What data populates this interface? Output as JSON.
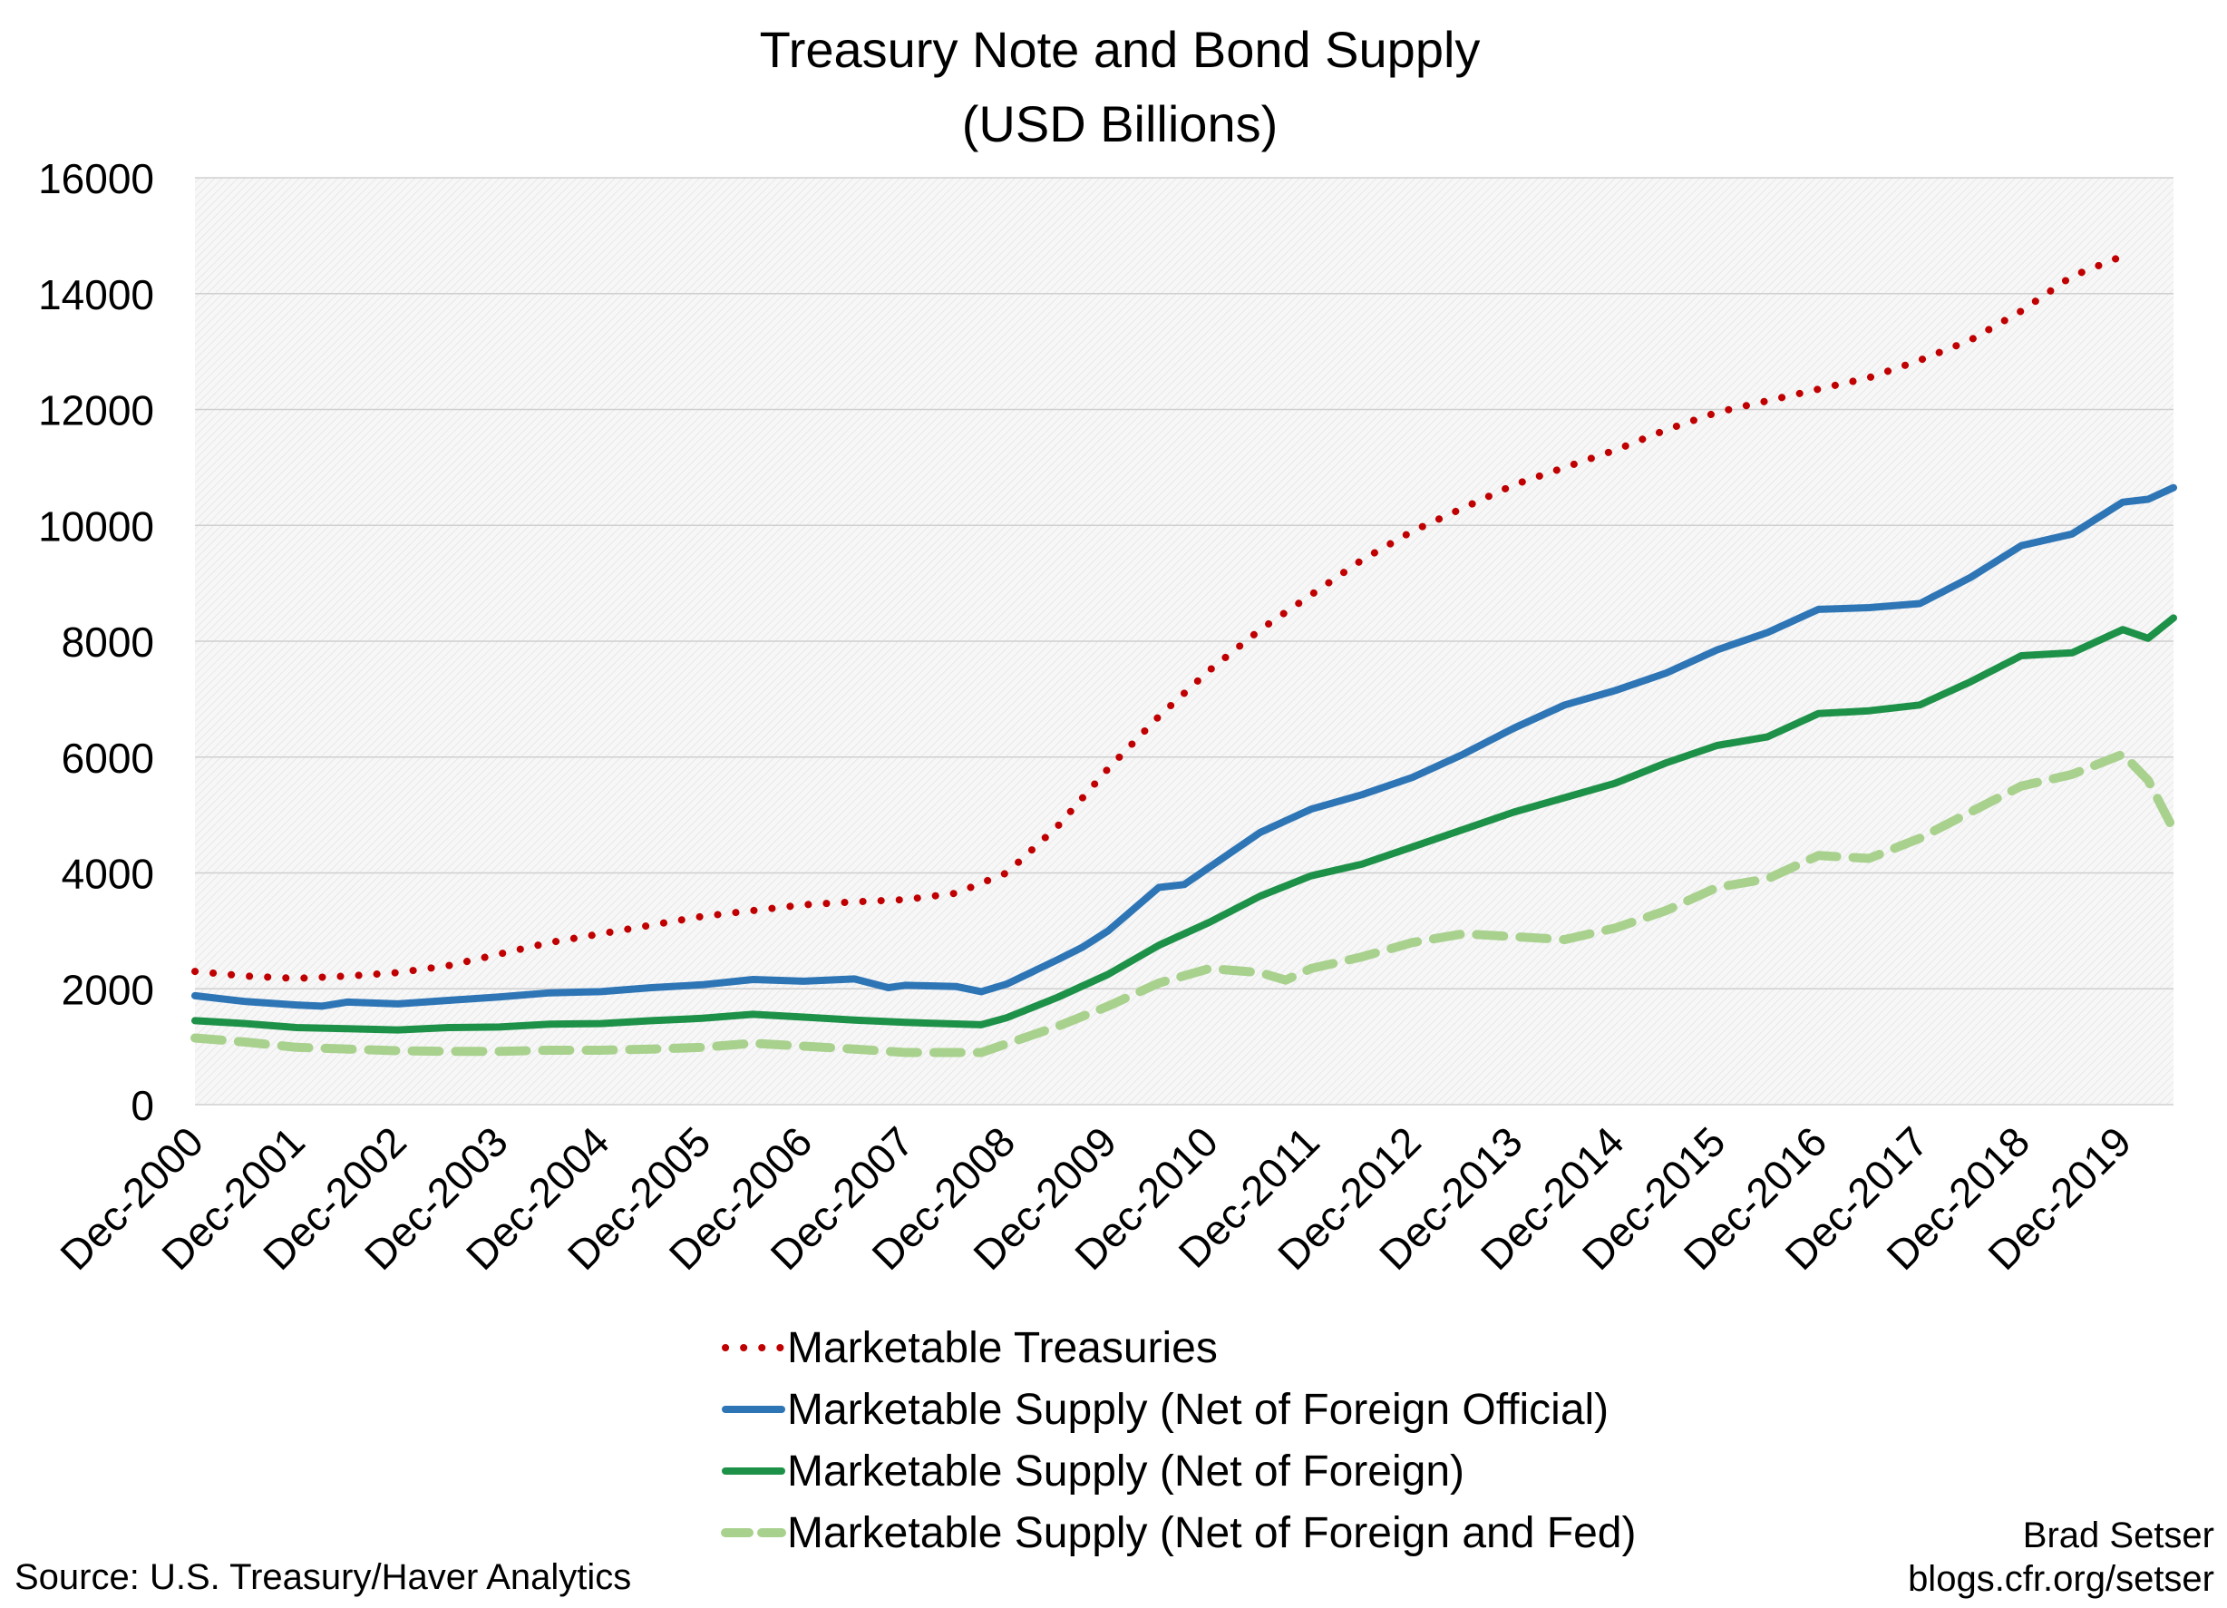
{
  "chart_data": {
    "type": "line",
    "title": "Treasury Note and Bond Supply",
    "subtitle": "(USD Billions)",
    "ylim": [
      0,
      16000
    ],
    "y_ticks": [
      0,
      2000,
      4000,
      6000,
      8000,
      10000,
      12000,
      14000,
      16000
    ],
    "x_ticks": [
      "Dec-2000",
      "Dec-2001",
      "Dec-2002",
      "Dec-2003",
      "Dec-2004",
      "Dec-2005",
      "Dec-2006",
      "Dec-2007",
      "Dec-2008",
      "Dec-2009",
      "Dec-2010",
      "Dec-2011",
      "Dec-2012",
      "Dec-2013",
      "Dec-2014",
      "Dec-2015",
      "Dec-2016",
      "Dec-2017",
      "Dec-2018",
      "Dec-2019"
    ],
    "xlim": [
      "Dec-2000",
      "Jun-2020"
    ],
    "grid": "horizontal",
    "legend_position": "bottom",
    "series": [
      {
        "name": "Marketable Treasuries",
        "color": "#c00000",
        "style": "dotted",
        "points": [
          [
            "Dec-2000",
            2300
          ],
          [
            "Jun-2001",
            2220
          ],
          [
            "Dec-2001",
            2180
          ],
          [
            "Jun-2002",
            2220
          ],
          [
            "Dec-2002",
            2280
          ],
          [
            "Jun-2003",
            2400
          ],
          [
            "Dec-2003",
            2600
          ],
          [
            "Jun-2004",
            2800
          ],
          [
            "Dec-2004",
            2950
          ],
          [
            "Jun-2005",
            3100
          ],
          [
            "Dec-2005",
            3250
          ],
          [
            "Jun-2006",
            3350
          ],
          [
            "Dec-2006",
            3450
          ],
          [
            "Jun-2007",
            3500
          ],
          [
            "Dec-2007",
            3540
          ],
          [
            "Jun-2008",
            3650
          ],
          [
            "Dec-2008",
            4000
          ],
          [
            "Jun-2009",
            4800
          ],
          [
            "Dec-2009",
            5800
          ],
          [
            "Jun-2010",
            6700
          ],
          [
            "Dec-2010",
            7500
          ],
          [
            "Jun-2011",
            8200
          ],
          [
            "Dec-2011",
            8800
          ],
          [
            "Jun-2012",
            9400
          ],
          [
            "Dec-2012",
            9900
          ],
          [
            "Jun-2013",
            10300
          ],
          [
            "Dec-2013",
            10700
          ],
          [
            "Jun-2014",
            11000
          ],
          [
            "Dec-2014",
            11300
          ],
          [
            "Jun-2015",
            11650
          ],
          [
            "Dec-2015",
            11950
          ],
          [
            "Jun-2016",
            12150
          ],
          [
            "Dec-2016",
            12350
          ],
          [
            "Jun-2017",
            12550
          ],
          [
            "Dec-2017",
            12850
          ],
          [
            "Jun-2018",
            13200
          ],
          [
            "Dec-2018",
            13700
          ],
          [
            "Jun-2019",
            14300
          ],
          [
            "Dec-2019",
            14650
          ]
        ]
      },
      {
        "name": "Marketable Supply (Net of Foreign Official)",
        "color": "#2e75b6",
        "style": "solid",
        "points": [
          [
            "Dec-2000",
            1880
          ],
          [
            "Jun-2001",
            1780
          ],
          [
            "Dec-2001",
            1720
          ],
          [
            "Mar-2002",
            1700
          ],
          [
            "Jun-2002",
            1770
          ],
          [
            "Dec-2002",
            1740
          ],
          [
            "Jun-2003",
            1800
          ],
          [
            "Dec-2003",
            1860
          ],
          [
            "Jun-2004",
            1930
          ],
          [
            "Dec-2004",
            1950
          ],
          [
            "Jun-2005",
            2020
          ],
          [
            "Dec-2005",
            2070
          ],
          [
            "Jun-2006",
            2160
          ],
          [
            "Dec-2006",
            2130
          ],
          [
            "Jun-2007",
            2170
          ],
          [
            "Oct-2007",
            2020
          ],
          [
            "Dec-2007",
            2060
          ],
          [
            "Jun-2008",
            2040
          ],
          [
            "Sep-2008",
            1950
          ],
          [
            "Dec-2008",
            2080
          ],
          [
            "Jun-2009",
            2500
          ],
          [
            "Sep-2009",
            2720
          ],
          [
            "Dec-2009",
            3000
          ],
          [
            "Jun-2010",
            3750
          ],
          [
            "Sep-2010",
            3800
          ],
          [
            "Dec-2010",
            4100
          ],
          [
            "Jun-2011",
            4700
          ],
          [
            "Sep-2011",
            4900
          ],
          [
            "Dec-2011",
            5100
          ],
          [
            "Jun-2012",
            5350
          ],
          [
            "Dec-2012",
            5650
          ],
          [
            "Jun-2013",
            6050
          ],
          [
            "Dec-2013",
            6500
          ],
          [
            "Jun-2014",
            6900
          ],
          [
            "Dec-2014",
            7150
          ],
          [
            "Jun-2015",
            7450
          ],
          [
            "Dec-2015",
            7850
          ],
          [
            "Jun-2016",
            8150
          ],
          [
            "Dec-2016",
            8550
          ],
          [
            "Jun-2017",
            8580
          ],
          [
            "Dec-2017",
            8650
          ],
          [
            "Jun-2018",
            9100
          ],
          [
            "Dec-2018",
            9650
          ],
          [
            "Jun-2019",
            9850
          ],
          [
            "Dec-2019",
            10400
          ],
          [
            "Mar-2020",
            10450
          ],
          [
            "Jun-2020",
            10650
          ]
        ]
      },
      {
        "name": "Marketable Supply (Net of Foreign)",
        "color": "#1e9148",
        "style": "solid",
        "points": [
          [
            "Dec-2000",
            1450
          ],
          [
            "Jun-2001",
            1400
          ],
          [
            "Dec-2001",
            1330
          ],
          [
            "Jun-2002",
            1310
          ],
          [
            "Dec-2002",
            1290
          ],
          [
            "Jun-2003",
            1330
          ],
          [
            "Dec-2003",
            1340
          ],
          [
            "Jun-2004",
            1390
          ],
          [
            "Dec-2004",
            1400
          ],
          [
            "Jun-2005",
            1450
          ],
          [
            "Dec-2005",
            1490
          ],
          [
            "Jun-2006",
            1560
          ],
          [
            "Dec-2006",
            1510
          ],
          [
            "Jun-2007",
            1460
          ],
          [
            "Dec-2007",
            1420
          ],
          [
            "Sep-2008",
            1380
          ],
          [
            "Dec-2008",
            1500
          ],
          [
            "Jun-2009",
            1850
          ],
          [
            "Dec-2009",
            2250
          ],
          [
            "Jun-2010",
            2750
          ],
          [
            "Dec-2010",
            3150
          ],
          [
            "Jun-2011",
            3600
          ],
          [
            "Dec-2011",
            3950
          ],
          [
            "Jun-2012",
            4150
          ],
          [
            "Dec-2012",
            4450
          ],
          [
            "Jun-2013",
            4750
          ],
          [
            "Dec-2013",
            5050
          ],
          [
            "Jun-2014",
            5300
          ],
          [
            "Dec-2014",
            5550
          ],
          [
            "Jun-2015",
            5900
          ],
          [
            "Dec-2015",
            6200
          ],
          [
            "Jun-2016",
            6350
          ],
          [
            "Dec-2016",
            6750
          ],
          [
            "Jun-2017",
            6800
          ],
          [
            "Dec-2017",
            6900
          ],
          [
            "Jun-2018",
            7300
          ],
          [
            "Dec-2018",
            7750
          ],
          [
            "Jun-2019",
            7800
          ],
          [
            "Dec-2019",
            8200
          ],
          [
            "Mar-2020",
            8050
          ],
          [
            "Jun-2020",
            8400
          ]
        ]
      },
      {
        "name": "Marketable Supply (Net of Foreign and Fed)",
        "color": "#a9d18e",
        "style": "dashed",
        "points": [
          [
            "Dec-2000",
            1150
          ],
          [
            "Jun-2001",
            1080
          ],
          [
            "Dec-2001",
            990
          ],
          [
            "Jun-2002",
            960
          ],
          [
            "Dec-2002",
            930
          ],
          [
            "Jun-2003",
            920
          ],
          [
            "Dec-2003",
            920
          ],
          [
            "Jun-2004",
            940
          ],
          [
            "Dec-2004",
            940
          ],
          [
            "Jun-2005",
            960
          ],
          [
            "Dec-2005",
            990
          ],
          [
            "Jun-2006",
            1060
          ],
          [
            "Dec-2006",
            1010
          ],
          [
            "Jun-2007",
            960
          ],
          [
            "Dec-2007",
            900
          ],
          [
            "Sep-2008",
            900
          ],
          [
            "Dec-2008",
            1050
          ],
          [
            "Jun-2009",
            1350
          ],
          [
            "Dec-2009",
            1700
          ],
          [
            "Jun-2010",
            2100
          ],
          [
            "Dec-2010",
            2350
          ],
          [
            "Jun-2011",
            2280
          ],
          [
            "Sep-2011",
            2150
          ],
          [
            "Dec-2011",
            2350
          ],
          [
            "Jun-2012",
            2550
          ],
          [
            "Dec-2012",
            2800
          ],
          [
            "Jun-2013",
            2950
          ],
          [
            "Dec-2013",
            2900
          ],
          [
            "Jun-2014",
            2850
          ],
          [
            "Dec-2014",
            3050
          ],
          [
            "Jun-2015",
            3350
          ],
          [
            "Dec-2015",
            3750
          ],
          [
            "Jun-2016",
            3900
          ],
          [
            "Dec-2016",
            4300
          ],
          [
            "Jun-2017",
            4250
          ],
          [
            "Dec-2017",
            4600
          ],
          [
            "Jun-2018",
            5050
          ],
          [
            "Dec-2018",
            5500
          ],
          [
            "Jun-2019",
            5700
          ],
          [
            "Dec-2019",
            6050
          ],
          [
            "Mar-2020",
            5600
          ],
          [
            "Jun-2020",
            4750
          ]
        ]
      }
    ]
  },
  "footer": {
    "source": "Source: U.S. Treasury/Haver Analytics",
    "author": "Brad Setser",
    "website": "blogs.cfr.org/setser"
  }
}
